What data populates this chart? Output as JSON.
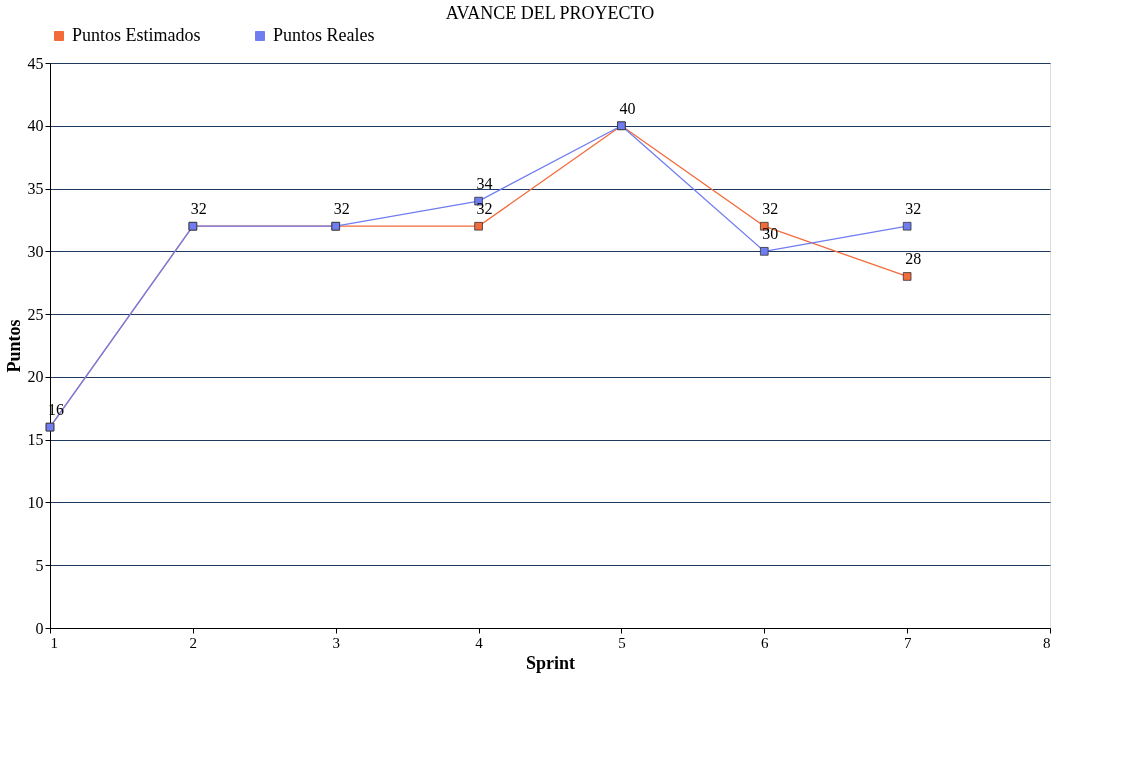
{
  "chart_data": {
    "type": "line",
    "title": "AVANCE DEL PROYECTO",
    "xlabel": "Sprint",
    "ylabel": "Puntos",
    "x": [
      1,
      2,
      3,
      4,
      5,
      6,
      7
    ],
    "series": [
      {
        "name": "Puntos Estimados",
        "color": "#f26b3a",
        "values": [
          16,
          32,
          32,
          32,
          40,
          32,
          28
        ],
        "value_labels": [
          "16",
          "32",
          "32",
          "32",
          "40",
          "32",
          "28"
        ]
      },
      {
        "name": "Puntos Reales",
        "color": "#6f7df0",
        "values": [
          16,
          32,
          32,
          34,
          40,
          30,
          32
        ],
        "value_labels": [
          null,
          null,
          null,
          "34",
          null,
          "30",
          "32"
        ]
      }
    ],
    "xlim": [
      1,
      8
    ],
    "xticks": [
      1,
      2,
      3,
      4,
      5,
      6,
      7,
      8
    ],
    "ylim": [
      0,
      45
    ],
    "yticks": [
      0,
      5,
      10,
      15,
      20,
      25,
      30,
      35,
      40,
      45
    ],
    "grid": "y",
    "legend": "top left",
    "marker": "square",
    "line_style": "solid"
  }
}
